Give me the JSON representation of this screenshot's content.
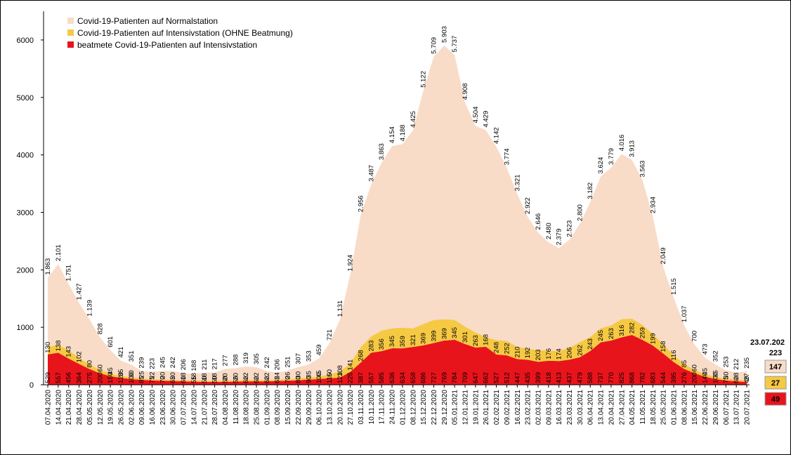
{
  "chart_data": {
    "type": "area",
    "x": [
      "07.04.2020",
      "14.04.2020",
      "21.04.2020",
      "28.04.2020",
      "05.05.2020",
      "12.05.2020",
      "19.05.2020",
      "26.05.2020",
      "02.06.2020",
      "09.06.2020",
      "16.06.2020",
      "23.06.2020",
      "30.06.2020",
      "07.07.2020",
      "14.07.2020",
      "21.07.2020",
      "28.07.2020",
      "04.08.2020",
      "11.08.2020",
      "18.08.2020",
      "25.08.2020",
      "01.09.2020",
      "08.09.2020",
      "15.09.2020",
      "22.09.2020",
      "29.09.2020",
      "06.10.2020",
      "13.10.2020",
      "20.10.2020",
      "27.10.2020",
      "03.11.2020",
      "10.11.2020",
      "17.11.2020",
      "24.11.2020",
      "01.12.2020",
      "08.12.2020",
      "15.12.2020",
      "22.12.2020",
      "29.12.2020",
      "05.01.2021",
      "12.01.2021",
      "19.01.2021",
      "26.01.2021",
      "02.02.2021",
      "09.02.2021",
      "16.02.2021",
      "23.02.2021",
      "02.03.2021",
      "09.03.2021",
      "16.03.2021",
      "23.03.2021",
      "30.03.2021",
      "06.04.2021",
      "13.04.2021",
      "20.04.2021",
      "27.04.2021",
      "04.05.2021",
      "11.05.2021",
      "18.05.2021",
      "25.05.2021",
      "01.06.2021",
      "08.06.2021",
      "15.06.2021",
      "22.06.2021",
      "29.06.2021",
      "06.07.2021",
      "13.07.2021",
      "20.07.2021"
    ],
    "series": [
      {
        "name": "Covid-19-Patienten auf Normalstation",
        "color": "#f8dcc8",
        "values": [
          1863,
          2101,
          1751,
          1427,
          1139,
          828,
          601,
          421,
          351,
          239,
          223,
          245,
          242,
          206,
          188,
          211,
          217,
          277,
          288,
          319,
          305,
          242,
          206,
          251,
          307,
          353,
          459,
          721,
          1131,
          1924,
          2956,
          3487,
          3863,
          4154,
          4188,
          4425,
          5122,
          5709,
          5903,
          5737,
          4908,
          4504,
          4429,
          4142,
          3774,
          3321,
          2922,
          2646,
          2480,
          2379,
          2523,
          2800,
          3182,
          3624,
          3779,
          4016,
          3913,
          3563,
          2934,
          2049,
          1515,
          1037,
          700,
          473,
          352,
          253,
          212,
          235
        ],
        "value_labels": [
          "1.863",
          "2.101",
          "1.751",
          "1.427",
          "1.139",
          "828",
          "601",
          "421",
          "351",
          "239",
          "223",
          "245",
          "242",
          "206",
          "188",
          "211",
          "217",
          "277",
          "288",
          "319",
          "305",
          "242",
          "206",
          "251",
          "307",
          "353",
          "459",
          "721",
          "1.131",
          "1.924",
          "2.956",
          "3.487",
          "3.863",
          "4.154",
          "4.188",
          "4.425",
          "5.122",
          "5.709",
          "5.903",
          "5.737",
          "4.908",
          "4.504",
          "4.429",
          "4.142",
          "3.774",
          "3.321",
          "2.922",
          "2.646",
          "2.480",
          "2.379",
          "2.523",
          "2.800",
          "3.182",
          "3.624",
          "3.779",
          "4.016",
          "3.913",
          "3.563",
          "2.934",
          "2.049",
          "1.515",
          "1.037",
          "700",
          "473",
          "352",
          "253",
          "212",
          "235"
        ]
      },
      {
        "name": "Covid-19-Patienten auf Intensivstation (OHNE Beatmung)",
        "color": "#f6c944",
        "stack": "icu",
        "values": [
          130,
          138,
          143,
          102,
          80,
          60,
          45,
          35,
          30,
          25,
          22,
          20,
          20,
          18,
          18,
          18,
          18,
          20,
          20,
          22,
          22,
          22,
          24,
          26,
          30,
          35,
          45,
          60,
          108,
          141,
          268,
          283,
          356,
          345,
          359,
          321,
          369,
          399,
          369,
          345,
          301,
          263,
          168,
          248,
          252,
          210,
          192,
          203,
          176,
          174,
          206,
          262,
          243,
          245,
          263,
          316,
          282,
          259,
          199,
          158,
          116,
          85,
          60,
          45,
          35,
          30,
          28,
          27
        ]
      },
      {
        "name": "beatmete Covid-19-Patienten auf Intensivstation",
        "color": "#e8141b",
        "stack": "icu",
        "values": [
          529,
          557,
          456,
          364,
          275,
          200,
          150,
          120,
          100,
          85,
          75,
          70,
          65,
          60,
          55,
          50,
          50,
          50,
          55,
          60,
          60,
          60,
          65,
          70,
          80,
          90,
          100,
          115,
          123,
          225,
          387,
          557,
          585,
          636,
          634,
          658,
          686,
          727,
          769,
          784,
          709,
          647,
          662,
          527,
          512,
          447,
          435,
          399,
          418,
          413,
          437,
          479,
          588,
          737,
          770,
          825,
          868,
          782,
          683,
          544,
          395,
          276,
          200,
          140,
          100,
          75,
          60,
          49
        ]
      }
    ],
    "ylim": [
      0,
      6500
    ],
    "yticks": [
      0,
      1000,
      2000,
      3000,
      4000,
      5000,
      6000
    ],
    "grid": false,
    "legend": "top-left"
  },
  "latest": {
    "date": "23.07.202",
    "total": 223,
    "normal": 147,
    "icu": 27,
    "ventilated": 49
  }
}
